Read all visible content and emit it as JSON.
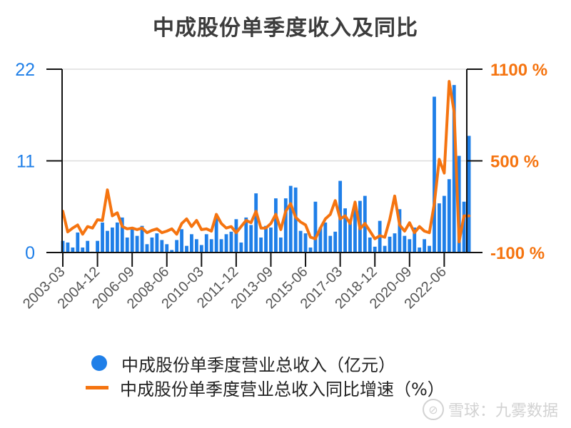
{
  "title": "中成股份单季度收入及同比",
  "legend": {
    "revenue_label": "中成股份单季度营业总收入（亿元）",
    "yoy_label": "中成股份单季度营业总收入同比增速（%）"
  },
  "watermark": {
    "icon": "snowball-logo-icon",
    "text": "雪球：九雾数据"
  },
  "colors": {
    "bar": "#1f7fe8",
    "line": "#f57410",
    "left_axis_text": "#1f7fe8",
    "right_axis_text": "#f57410",
    "title": "#3c3c3c",
    "grid": "#dddddd"
  },
  "chart_data": {
    "type": "bar+line",
    "title": "中成股份单季度收入及同比",
    "xlabel": "",
    "ylabel_left": "单季度营业总收入（亿元）",
    "ylabel_right": "同比增速（%）",
    "ylim_left": [
      0,
      22
    ],
    "ylim_right": [
      -100,
      1100
    ],
    "left_ticks": [
      "0",
      "11",
      "22"
    ],
    "right_ticks": [
      "-100 %",
      "500 %",
      "1100 %"
    ],
    "x_tick_labels": [
      "2003-03",
      "2004-12",
      "2006-09",
      "2008-06",
      "2010-03",
      "2011-12",
      "2013-09",
      "2015-06",
      "2017-03",
      "2018-12",
      "2020-09",
      "2022-06"
    ],
    "grid": true,
    "legend_position": "bottom",
    "categories": [
      "2003-03",
      "2003-06",
      "2003-09",
      "2003-12",
      "2004-03",
      "2004-06",
      "2004-09",
      "2004-12",
      "2005-03",
      "2005-06",
      "2005-09",
      "2005-12",
      "2006-03",
      "2006-06",
      "2006-09",
      "2006-12",
      "2007-03",
      "2007-06",
      "2007-09",
      "2007-12",
      "2008-03",
      "2008-06",
      "2008-09",
      "2008-12",
      "2009-03",
      "2009-06",
      "2009-09",
      "2009-12",
      "2010-03",
      "2010-06",
      "2010-09",
      "2010-12",
      "2011-03",
      "2011-06",
      "2011-09",
      "2011-12",
      "2012-03",
      "2012-06",
      "2012-09",
      "2012-12",
      "2013-03",
      "2013-06",
      "2013-09",
      "2013-12",
      "2014-03",
      "2014-06",
      "2014-09",
      "2014-12",
      "2015-03",
      "2015-06",
      "2015-09",
      "2015-12",
      "2016-03",
      "2016-06",
      "2016-09",
      "2016-12",
      "2017-03",
      "2017-06",
      "2017-09",
      "2017-12",
      "2018-03",
      "2018-06",
      "2018-09",
      "2018-12",
      "2019-03",
      "2019-06",
      "2019-09",
      "2019-12",
      "2020-03",
      "2020-06",
      "2020-09",
      "2020-12",
      "2021-03",
      "2021-06",
      "2021-09",
      "2021-12",
      "2022-03",
      "2022-06",
      "2022-09",
      "2022-12",
      "2023-03",
      "2023-06",
      "2023-09"
    ],
    "series": [
      {
        "name": "中成股份单季度营业总收入（亿元）",
        "type": "bar",
        "axis": "left",
        "values": [
          1.4,
          1.2,
          0.6,
          2.4,
          0.6,
          1.4,
          0.1,
          1.4,
          3.6,
          2.6,
          3.0,
          3.6,
          4.2,
          1.8,
          2.8,
          2.0,
          3.2,
          1.0,
          1.8,
          2.3,
          1.5,
          1.0,
          0.3,
          1.5,
          2.8,
          0.8,
          2.2,
          1.6,
          0.9,
          2.2,
          1.6,
          4.2,
          1.6,
          2.2,
          2.5,
          4.0,
          1.2,
          4.2,
          3.3,
          7.1,
          1.8,
          3.2,
          3.0,
          6.5,
          1.8,
          6.5,
          8.0,
          7.8,
          2.6,
          2.3,
          0.6,
          6.1,
          3.0,
          3.6,
          2.0,
          2.5,
          8.6,
          5.3,
          4.0,
          5.7,
          6.2,
          6.8,
          1.8,
          0.7,
          3.8,
          0.8,
          1.9,
          2.3,
          5.2,
          2.0,
          1.6,
          3.0,
          0.6,
          1.6,
          0.8,
          18.7,
          5.9,
          6.8,
          8.8,
          20.1,
          11.6,
          6.1,
          14.0
        ]
      },
      {
        "name": "中成股份单季度营业总收入同比增速（%）",
        "type": "line",
        "axis": "right",
        "values": [
          170,
          35,
          60,
          80,
          20,
          70,
          60,
          115,
          110,
          310,
          140,
          160,
          70,
          55,
          60,
          50,
          60,
          30,
          45,
          55,
          30,
          40,
          55,
          20,
          90,
          120,
          70,
          110,
          50,
          55,
          40,
          150,
          90,
          60,
          70,
          30,
          70,
          110,
          95,
          170,
          60,
          60,
          90,
          150,
          50,
          170,
          220,
          130,
          100,
          80,
          0,
          -10,
          60,
          120,
          150,
          240,
          120,
          140,
          90,
          230,
          55,
          90,
          40,
          -10,
          10,
          0,
          115,
          270,
          80,
          40,
          95,
          30,
          70,
          40,
          30,
          220,
          510,
          420,
          1020,
          820,
          -30,
          140,
          140
        ]
      }
    ]
  }
}
